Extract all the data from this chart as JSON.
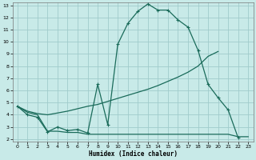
{
  "xlabel": "Humidex (Indice chaleur)",
  "xlim": [
    -0.5,
    23.5
  ],
  "ylim": [
    1.8,
    13.2
  ],
  "xticks": [
    0,
    1,
    2,
    3,
    4,
    5,
    6,
    7,
    8,
    9,
    10,
    11,
    12,
    13,
    14,
    15,
    16,
    17,
    18,
    19,
    20,
    21,
    22,
    23
  ],
  "yticks": [
    2,
    3,
    4,
    5,
    6,
    7,
    8,
    9,
    10,
    11,
    12,
    13
  ],
  "bg_color": "#c8eae8",
  "grid_color": "#a0cccc",
  "line_color": "#1a6b5a",
  "curve1_x": [
    0,
    1,
    2,
    3,
    4,
    5,
    6,
    7,
    8,
    9,
    10,
    11,
    12,
    13,
    14,
    15,
    16,
    17,
    18,
    19,
    20,
    21,
    22
  ],
  "curve1_y": [
    4.7,
    4.0,
    3.8,
    2.6,
    3.0,
    2.7,
    2.8,
    2.5,
    6.5,
    3.2,
    9.8,
    11.5,
    12.5,
    13.1,
    12.6,
    12.6,
    11.8,
    11.2,
    9.3,
    6.5,
    5.4,
    4.4,
    2.1
  ],
  "curve2_x": [
    0,
    1,
    2,
    3,
    4,
    5,
    6,
    7,
    8,
    9,
    10,
    11,
    12,
    13,
    14,
    15,
    16,
    17,
    18,
    19,
    20
  ],
  "curve2_y": [
    4.7,
    4.3,
    4.1,
    4.0,
    4.15,
    4.3,
    4.5,
    4.7,
    4.85,
    5.1,
    5.35,
    5.6,
    5.85,
    6.1,
    6.4,
    6.75,
    7.1,
    7.5,
    8.0,
    8.8,
    9.2
  ],
  "curve3_x": [
    0,
    1,
    2,
    3,
    4,
    5,
    6,
    7,
    8,
    9,
    10,
    11,
    12,
    13,
    14,
    15,
    16,
    17,
    18,
    19,
    20,
    21,
    22,
    23
  ],
  "curve3_y": [
    4.7,
    4.2,
    4.0,
    2.65,
    2.65,
    2.55,
    2.55,
    2.4,
    2.4,
    2.4,
    2.4,
    2.4,
    2.4,
    2.4,
    2.4,
    2.4,
    2.4,
    2.4,
    2.4,
    2.4,
    2.4,
    2.4,
    2.2,
    2.2
  ]
}
